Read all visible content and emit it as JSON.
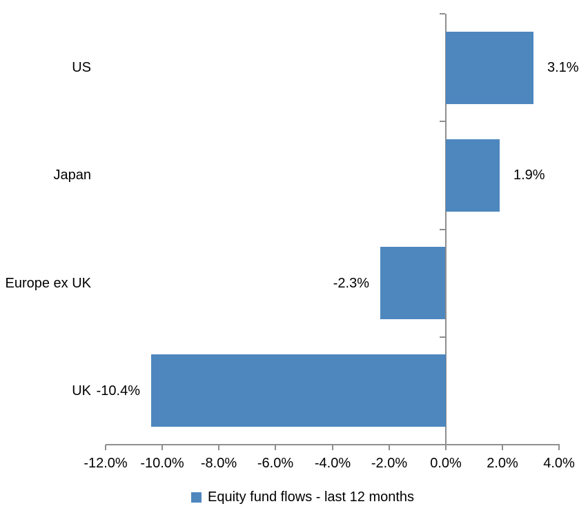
{
  "chart_data": {
    "type": "bar",
    "orientation": "horizontal",
    "title": "",
    "xlabel": "",
    "ylabel": "",
    "categories": [
      "US",
      "Japan",
      "Europe ex UK",
      "UK"
    ],
    "values": [
      3.1,
      1.9,
      -2.3,
      -10.4
    ],
    "data_labels": [
      "3.1%",
      "1.9%",
      "-2.3%",
      "-10.4%"
    ],
    "series_name": "Equity fund flows - last 12 months",
    "xlim": [
      -12,
      4
    ],
    "x_ticks": [
      -12,
      -10,
      -8,
      -6,
      -4,
      -2,
      0,
      2,
      4
    ],
    "x_tick_labels": [
      "-12.0%",
      "-10.0%",
      "-8.0%",
      "-6.0%",
      "-4.0%",
      "-2.0%",
      "0.0%",
      "2.0%",
      "4.0%"
    ],
    "grid": false,
    "legend_position": "bottom",
    "bar_color": "#4D87BE",
    "axis_color": "#8E8E8E",
    "text_color": "#000000"
  },
  "legend": {
    "label": "Equity fund flows - last 12 months"
  }
}
